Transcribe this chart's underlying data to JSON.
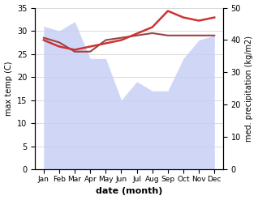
{
  "months": [
    "Jan",
    "Feb",
    "Mar",
    "Apr",
    "May",
    "Jun",
    "Jul",
    "Aug",
    "Sep",
    "Oct",
    "Nov",
    "Dec"
  ],
  "temp": [
    28.5,
    27.5,
    25.5,
    25.5,
    28,
    28.5,
    29,
    29.5,
    29,
    29,
    29,
    29
  ],
  "precip_raw": [
    31,
    30,
    32,
    24,
    24,
    15,
    19,
    17,
    17,
    24,
    28,
    29
  ],
  "precip_line": [
    40,
    38,
    37,
    38,
    39,
    40,
    42,
    44,
    49,
    47,
    46,
    47
  ],
  "temp_color": "#994444",
  "precip_line_color": "#cc3333",
  "fill_color": "#c8cff5",
  "fill_alpha": 0.85,
  "xlabel": "date (month)",
  "ylabel_left": "max temp (C)",
  "ylabel_right": "med. precipitation (kg/m2)",
  "ylim_left": [
    0,
    35
  ],
  "ylim_right": [
    0,
    50
  ],
  "yticks_left": [
    0,
    5,
    10,
    15,
    20,
    25,
    30,
    35
  ],
  "yticks_right": [
    0,
    10,
    20,
    30,
    40,
    50
  ],
  "background_color": "#ffffff",
  "grid_color": "#cccccc"
}
